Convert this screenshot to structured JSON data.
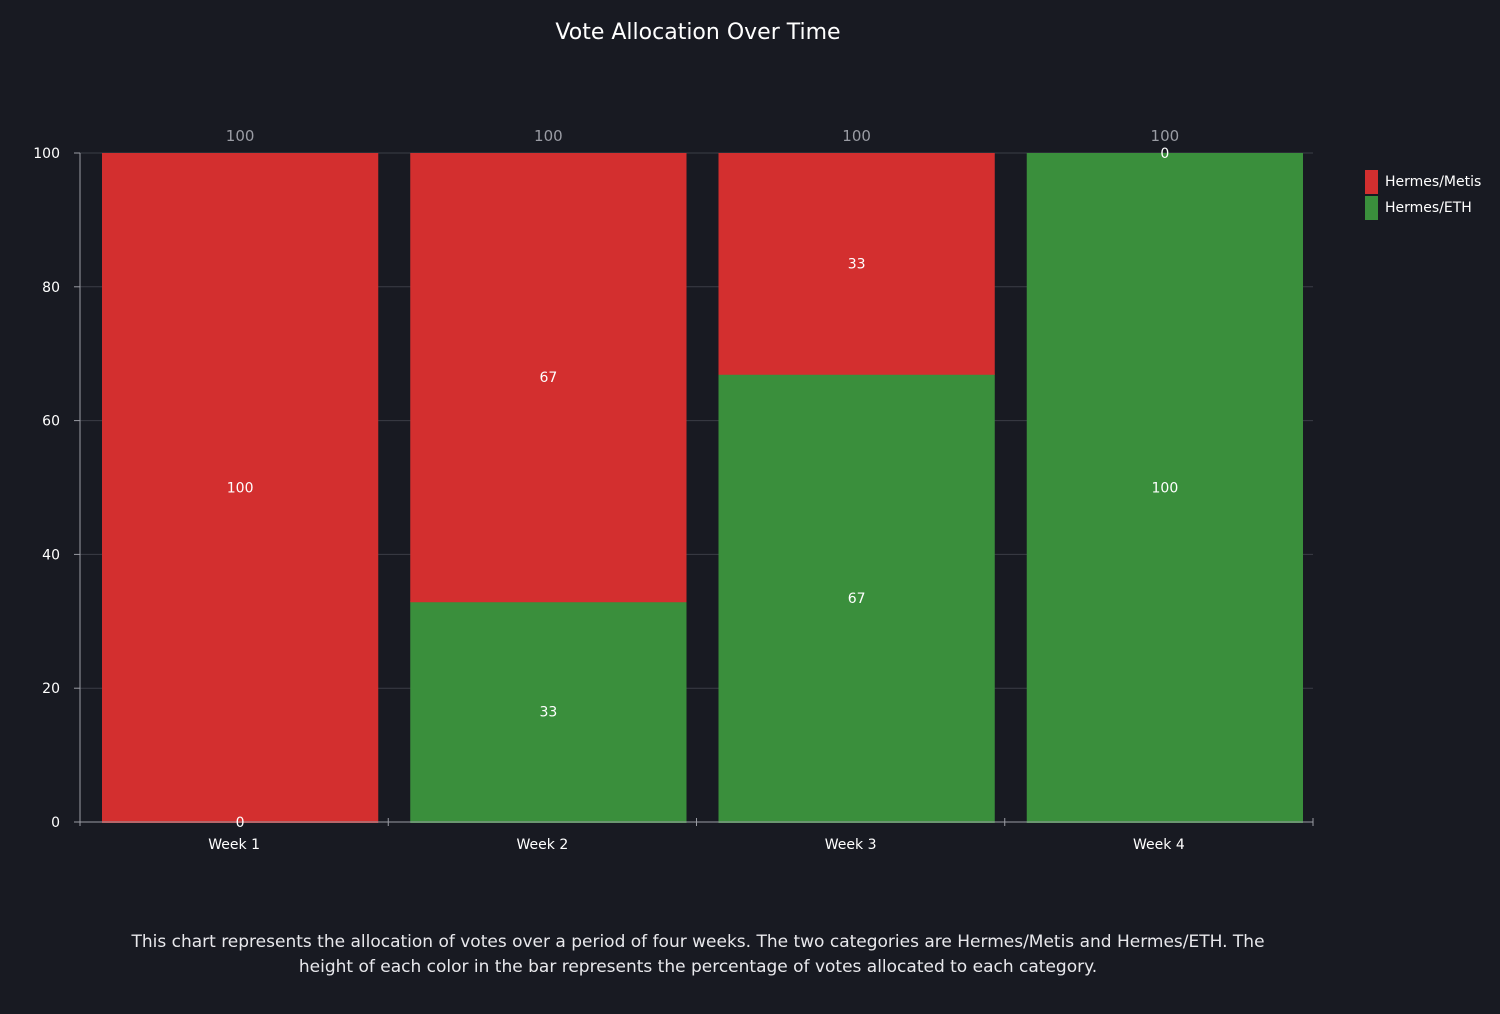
{
  "chart_data": {
    "type": "bar",
    "stacked": true,
    "title": "Vote Allocation Over Time",
    "xlabel": "",
    "ylabel": "",
    "categories": [
      "Week 1",
      "Week 2",
      "Week 3",
      "Week 4"
    ],
    "series": [
      {
        "name": "Hermes/ETH",
        "color": "#3a8f3c",
        "values": [
          0,
          33,
          67,
          100
        ]
      },
      {
        "name": "Hermes/Metis",
        "color": "#d32f2f",
        "values": [
          100,
          67,
          33,
          0
        ]
      }
    ],
    "totals": [
      100,
      100,
      100,
      100
    ],
    "ylim": [
      0,
      100
    ],
    "yticks": [
      0,
      20,
      40,
      60,
      80,
      100
    ],
    "grid": true,
    "legend": "right",
    "legend_order": [
      "Hermes/Metis",
      "Hermes/ETH"
    ]
  },
  "caption": "This chart represents the allocation of votes over a period of four weeks. The two categories are Hermes/Metis and Hermes/ETH. The height of each color in the bar represents the percentage of votes allocated to each category.",
  "colors": {
    "background": "#181a22",
    "grid": "#3a3d46",
    "axis": "#9a9ca4"
  }
}
